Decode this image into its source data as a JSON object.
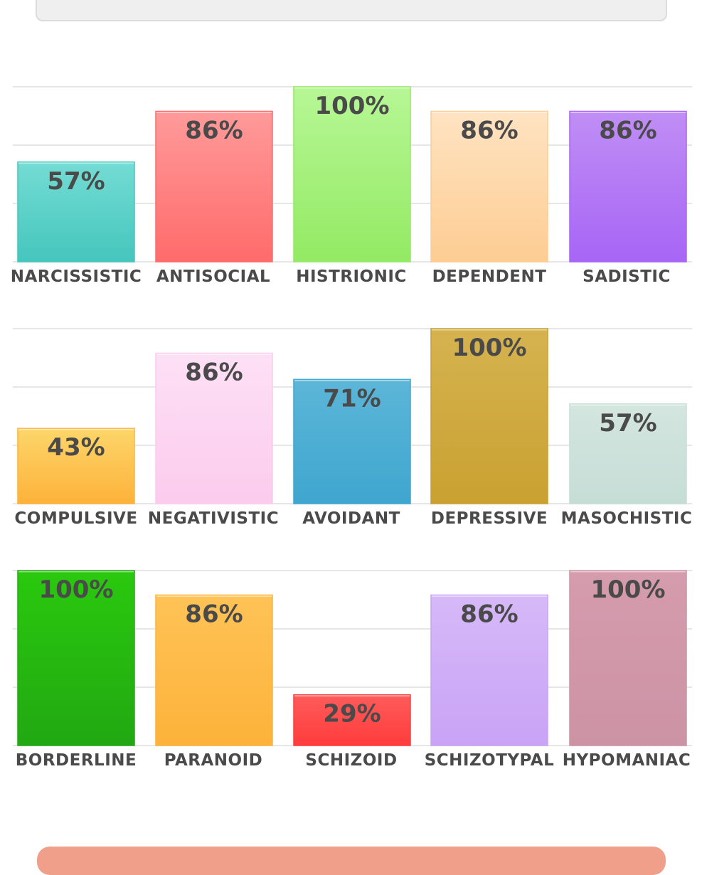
{
  "chart_data": [
    {
      "type": "bar",
      "categories": [
        "NARCISSISTIC",
        "ANTISOCIAL",
        "HISTRIONIC",
        "DEPENDENT",
        "SADISTIC"
      ],
      "values": [
        57,
        86,
        100,
        86,
        86
      ],
      "value_labels": [
        "57%",
        "86%",
        "100%",
        "86%",
        "86%"
      ],
      "colors": [
        [
          "#74dcd4",
          "#45c6bd"
        ],
        [
          "#ff9a9a",
          "#ff6b6b"
        ],
        [
          "#b7f796",
          "#93ea63"
        ],
        [
          "#ffe3c2",
          "#fdcd93"
        ],
        [
          "#c08ef5",
          "#a765f5"
        ]
      ],
      "ylim": [
        0,
        100
      ],
      "grid": true
    },
    {
      "type": "bar",
      "categories": [
        "COMPULSIVE",
        "NEGATIVISTIC",
        "AVOIDANT",
        "DEPRESSIVE",
        "MASOCHISTIC"
      ],
      "values": [
        43,
        86,
        71,
        100,
        57
      ],
      "value_labels": [
        "43%",
        "86%",
        "71%",
        "100%",
        "57%"
      ],
      "colors": [
        [
          "#fdd66a",
          "#fdb23a"
        ],
        [
          "#fde0f6",
          "#fccbed"
        ],
        [
          "#5cb6d8",
          "#3fa6cf"
        ],
        [
          "#d6b350",
          "#c9a131"
        ],
        [
          "#d3e6df",
          "#c6ddd6"
        ]
      ],
      "ylim": [
        0,
        100
      ],
      "grid": true
    },
    {
      "type": "bar",
      "categories": [
        "BORDERLINE",
        "PARANOID",
        "SCHIZOID",
        "SCHIZOTYPAL",
        "HYPOMANIAC"
      ],
      "values": [
        100,
        86,
        29,
        86,
        100
      ],
      "value_labels": [
        "100%",
        "86%",
        "29%",
        "86%",
        "100%"
      ],
      "colors": [
        [
          "#2ac90e",
          "#22a812"
        ],
        [
          "#fec356",
          "#fdb23a"
        ],
        [
          "#ff5b5b",
          "#ff3c3c"
        ],
        [
          "#d6b9f8",
          "#c9a3f6"
        ],
        [
          "#d59cae",
          "#cc93a5"
        ]
      ],
      "ylim": [
        0,
        100
      ],
      "grid": true
    }
  ]
}
